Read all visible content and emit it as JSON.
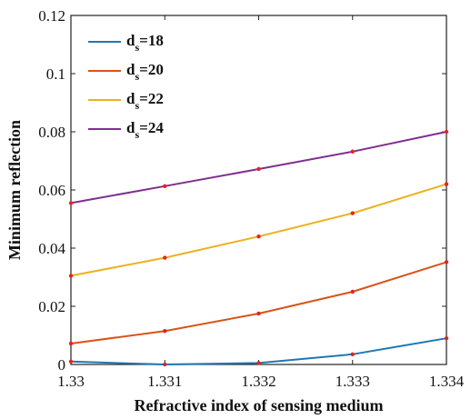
{
  "chart_data": {
    "type": "line",
    "xlabel": "Refractive index of sensing medium",
    "ylabel": "Minimum reflection",
    "x": [
      1.33,
      1.331,
      1.332,
      1.333,
      1.334
    ],
    "x_ticks": [
      "1.33",
      "1.331",
      "1.332",
      "1.333",
      "1.334"
    ],
    "y_ticks": [
      "0",
      "0.02",
      "0.04",
      "0.06",
      "0.08",
      "0.1",
      "0.12"
    ],
    "xlim": [
      1.33,
      1.334
    ],
    "ylim": [
      0,
      0.12
    ],
    "grid": false,
    "legend_position": "top-left",
    "marker_color": "#e8221d",
    "series": [
      {
        "name_main": "d",
        "name_sub": "s",
        "name_suffix": "=18",
        "color": "#1f77b4",
        "values": [
          0.001,
          0.0,
          0.0005,
          0.0035,
          0.009
        ]
      },
      {
        "name_main": "d",
        "name_sub": "s",
        "name_suffix": "=20",
        "color": "#d95319",
        "values": [
          0.0072,
          0.0115,
          0.0175,
          0.025,
          0.0352
        ]
      },
      {
        "name_main": "d",
        "name_sub": "s",
        "name_suffix": "=22",
        "color": "#edb120",
        "values": [
          0.0305,
          0.0367,
          0.044,
          0.052,
          0.062
        ]
      },
      {
        "name_main": "d",
        "name_sub": "s",
        "name_suffix": "=24",
        "color": "#7e2f8e",
        "values": [
          0.0555,
          0.0613,
          0.0672,
          0.0732,
          0.08
        ]
      }
    ]
  }
}
